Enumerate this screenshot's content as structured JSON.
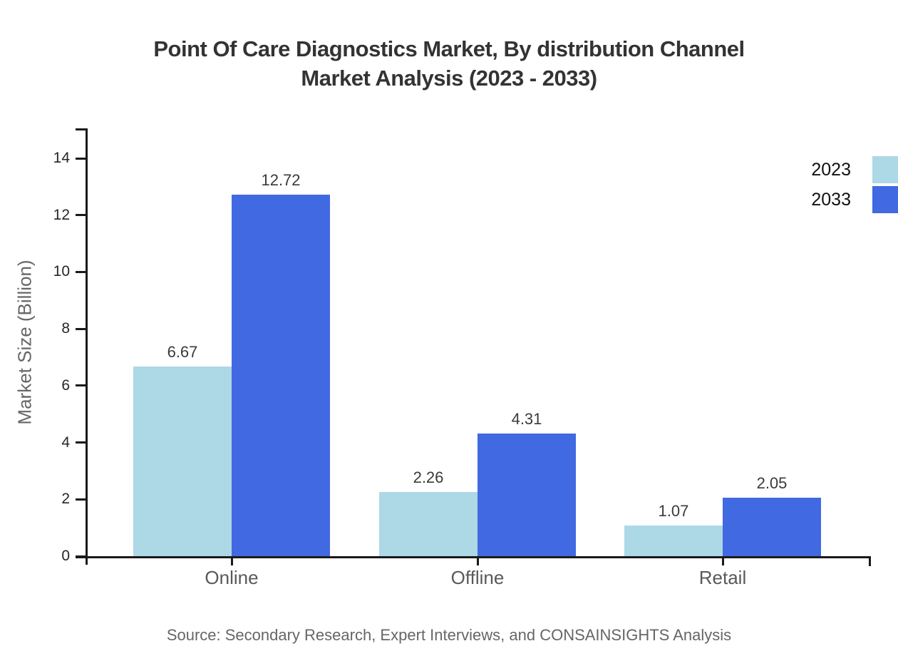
{
  "title": {
    "line1": "Point Of Care Diagnostics Market, By distribution Channel",
    "line2": "Market Analysis (2023 - 2033)"
  },
  "source": "Source: Secondary Research, Expert Interviews, and CONSAINSIGHTS Analysis",
  "colors": {
    "series_2023": "#ADD8E6",
    "series_2033": "#4169E1",
    "axis": "#1a1a1a"
  },
  "chart_data": {
    "type": "bar",
    "title": "Point Of Care Diagnostics Market, By distribution Channel Market Analysis (2023 - 2033)",
    "categories": [
      "Online",
      "Offline",
      "Retail"
    ],
    "series": [
      {
        "name": "2023",
        "color": "#ADD8E6",
        "values": [
          6.67,
          2.26,
          1.07
        ]
      },
      {
        "name": "2033",
        "color": "#4169E1",
        "values": [
          12.72,
          4.31,
          2.05
        ]
      }
    ],
    "xlabel": "",
    "ylabel": "Market Size (Billion)",
    "ylim": [
      0,
      15
    ],
    "yticks": [
      0,
      2,
      4,
      6,
      8,
      10,
      12,
      14
    ],
    "grid": false,
    "legend_position": "top-right",
    "value_labels": true
  }
}
